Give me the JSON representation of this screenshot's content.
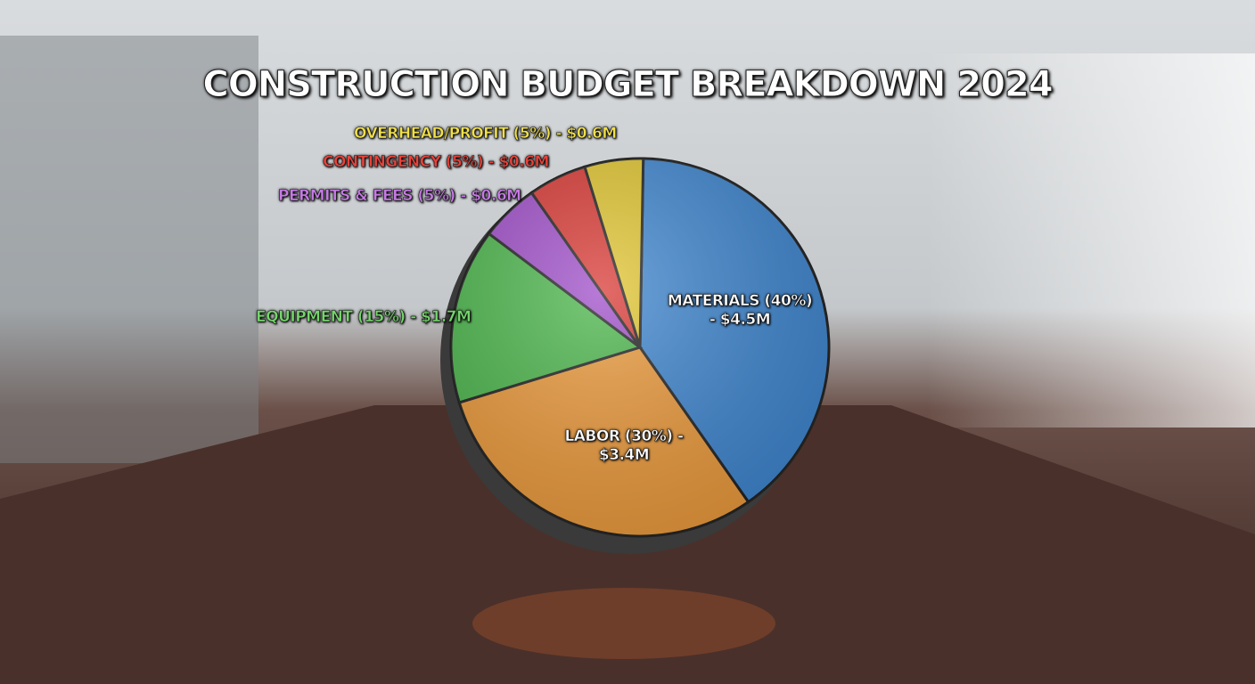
{
  "chart_data": {
    "type": "pie",
    "title": "CONSTRUCTION BUDGET BREAKDOWN 2024",
    "categories": [
      "MATERIALS (40%) - $4.5M",
      "LABOR (30%) - $3.4M",
      "EQUIPMENT (15%) - $1.7M",
      "PERMITS & FEES (5%) - $0.6M",
      "CONTINGENCY (5%) - $0.6M",
      "OVERHEAD/PROFIT (5%) - $0.6M"
    ],
    "values": [
      40,
      30,
      15,
      5,
      5,
      5
    ],
    "colors": [
      "#3f86cf",
      "#eb9a3c",
      "#4cb64c",
      "#a04fc9",
      "#d93a35",
      "#e0c531"
    ],
    "label_colors": [
      "#ffffff",
      "#ffffff",
      "#74d66b",
      "#c77ae6",
      "#e8423a",
      "#f1e04a"
    ]
  }
}
